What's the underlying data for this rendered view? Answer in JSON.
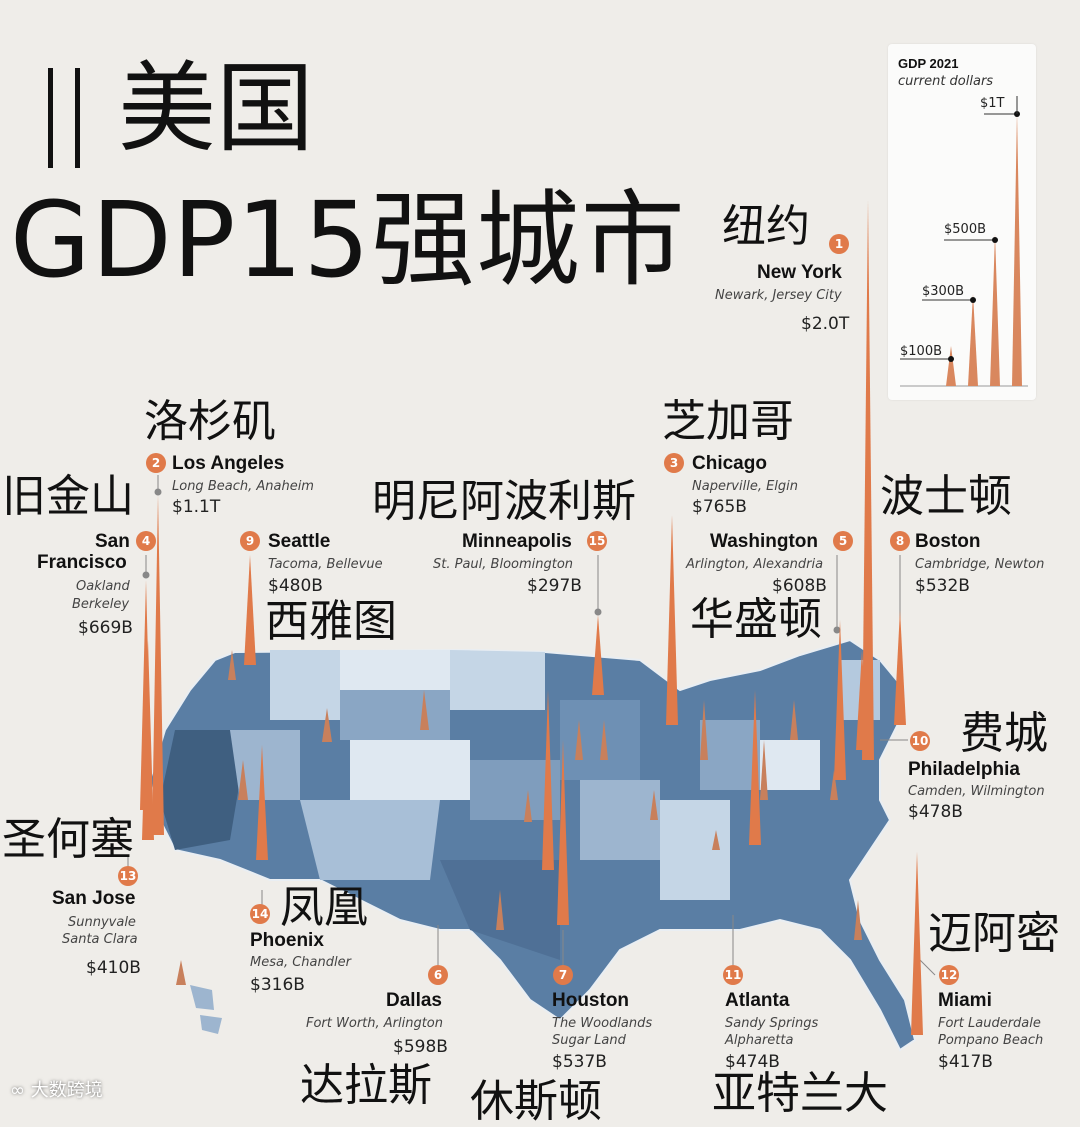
{
  "title": {
    "line1": "美国",
    "line2": "GDP15强城市"
  },
  "legend": {
    "title": "GDP 2021",
    "subtitle": "current dollars",
    "levels": [
      "$1T",
      "$500B",
      "$300B",
      "$100B"
    ]
  },
  "cities": [
    {
      "rank": "1",
      "cn": "纽约",
      "name": "New York",
      "sub1": "Newark, Jersey City",
      "sub2": "",
      "gdp": "$2.0T"
    },
    {
      "rank": "2",
      "cn": "洛杉矶",
      "name": "Los Angeles",
      "sub1": "Long Beach, Anaheim",
      "sub2": "",
      "gdp": "$1.1T"
    },
    {
      "rank": "3",
      "cn": "芝加哥",
      "name": "Chicago",
      "sub1": "Naperville, Elgin",
      "sub2": "",
      "gdp": "$765B"
    },
    {
      "rank": "4",
      "cn": "旧金山",
      "name_l1": "San",
      "name_l2": "Francisco",
      "sub1": "Oakland",
      "sub2": "Berkeley",
      "gdp": "$669B"
    },
    {
      "rank": "5",
      "cn": "华盛顿",
      "name": "Washington",
      "sub1": "Arlington, Alexandria",
      "sub2": "",
      "gdp": "$608B"
    },
    {
      "rank": "6",
      "cn": "达拉斯",
      "name": "Dallas",
      "sub1": "Fort Worth, Arlington",
      "sub2": "",
      "gdp": "$598B"
    },
    {
      "rank": "7",
      "cn": "休斯顿",
      "name": "Houston",
      "sub1": "The Woodlands",
      "sub2": "Sugar Land",
      "gdp": "$537B"
    },
    {
      "rank": "8",
      "cn": "波士顿",
      "name": "Boston",
      "sub1": "Cambridge, Newton",
      "sub2": "",
      "gdp": "$532B"
    },
    {
      "rank": "9",
      "cn": "西雅图",
      "name": "Seattle",
      "sub1": "Tacoma, Bellevue",
      "sub2": "",
      "gdp": "$480B"
    },
    {
      "rank": "10",
      "cn": "费城",
      "name": "Philadelphia",
      "sub1": "Camden, Wilmington",
      "sub2": "",
      "gdp": "$478B"
    },
    {
      "rank": "11",
      "cn": "亚特兰大",
      "name": "Atlanta",
      "sub1": "Sandy Springs",
      "sub2": "Alpharetta",
      "gdp": "$474B"
    },
    {
      "rank": "12",
      "cn": "迈阿密",
      "name": "Miami",
      "sub1": "Fort Lauderdale",
      "sub2": "Pompano Beach",
      "gdp": "$417B"
    },
    {
      "rank": "13",
      "cn": "圣何塞",
      "name": "San Jose",
      "sub1": "Sunnyvale",
      "sub2": "Santa Clara",
      "gdp": "$410B"
    },
    {
      "rank": "14",
      "cn": "凤凰",
      "name": "Phoenix",
      "sub1": "Mesa, Chandler",
      "sub2": "",
      "gdp": "$316B"
    },
    {
      "rank": "15",
      "cn": "明尼阿波利斯",
      "name": "Minneapolis",
      "sub1": "St. Paul,  Bloomington",
      "sub2": "",
      "gdp": "$297B"
    }
  ],
  "watermark": "大数跨境",
  "colors": {
    "spike": "#e07a4a",
    "map_dark": "#3f5f80",
    "map_mid": "#6e90b4",
    "map_light": "#c5d6e6",
    "background": "#efede9"
  }
}
